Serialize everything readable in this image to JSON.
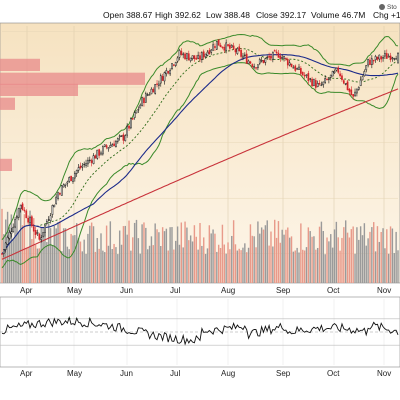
{
  "header": {
    "open_label": "Open",
    "open_value": "388.67",
    "high_label": "High",
    "high_value": "392.62",
    "low_label": "Low",
    "low_value": "388.48",
    "close_label": "Close",
    "close_value": "392.17",
    "volume_label": "Volume",
    "volume_value": "46.7M",
    "chg_label": "Chg",
    "chg_value": "+1",
    "logo_text": "Sto"
  },
  "colors": {
    "price_bg_top": "#f6e2c0",
    "price_bg_bottom": "#fdf6ea",
    "up_candle": "#111111",
    "down_candle": "#d2232a",
    "bollinger": "#3a8a2a",
    "ma_fast": "#1b2a8a",
    "ma_slow": "#c8323a",
    "ma_dotted": "#2e6b1a",
    "volume_up": "#9a9a9a",
    "volume_down": "#e89a8a",
    "volume_profile": "#e8898a",
    "oscillator_line": "#111111",
    "oscillator_fill": "#2e7d32"
  },
  "chart_data": [
    {
      "type": "line",
      "subtype": "candlestick",
      "panel": "price",
      "x_axis": "months",
      "months": [
        "Apr",
        "May",
        "Jun",
        "Jul",
        "Aug",
        "Sep",
        "Oct",
        "Nov"
      ],
      "last_bar": {
        "open": 388.67,
        "high": 392.62,
        "low": 388.48,
        "close": 392.17,
        "volume": "46.7M"
      },
      "price_path_anchors": [
        [
          0,
          320
        ],
        [
          10,
          338
        ],
        [
          20,
          325
        ],
        [
          30,
          342
        ],
        [
          40,
          350
        ],
        [
          55,
          358
        ],
        [
          65,
          362
        ],
        [
          75,
          375
        ],
        [
          85,
          383
        ],
        [
          95,
          392
        ],
        [
          105,
          390
        ],
        [
          115,
          396
        ],
        [
          125,
          393
        ],
        [
          135,
          388
        ],
        [
          148,
          392
        ],
        [
          162,
          384
        ],
        [
          170,
          380
        ],
        [
          180,
          386
        ],
        [
          188,
          376
        ],
        [
          196,
          389
        ],
        [
          205,
          391
        ],
        [
          212,
          392
        ]
      ],
      "overlays": [
        "Bollinger Bands",
        "20-day MA",
        "50-day MA",
        "200-day MA",
        "Volume-by-price"
      ],
      "grid": true
    },
    {
      "type": "bar",
      "panel": "volume",
      "series": [
        {
          "name": "Volume"
        }
      ]
    },
    {
      "type": "line",
      "panel": "oscillator",
      "ylim": [
        0,
        100
      ],
      "reference_levels": [
        30,
        50,
        70
      ]
    }
  ]
}
